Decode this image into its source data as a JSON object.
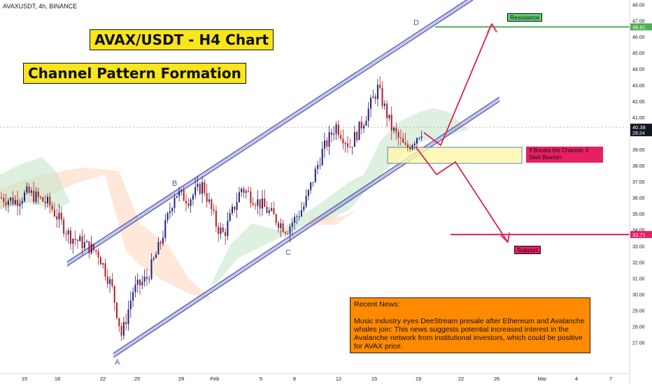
{
  "symbol_header": "AVAXUSDT, 4h, BINANCE",
  "title": "AVAX/USDT - H4 Chart",
  "subtitle": "Channel Pattern Formation",
  "news": {
    "heading": "Recent News:",
    "body": "Music industry eyes DeeStream presale after Ethereum and Avalanche whales join: This news suggests potential increased interest in the Avalanche network from institutional investors, which could be positive for AVAX price."
  },
  "warning": "If  Breaks the Channel, it Start Bearish",
  "resistance_label": "Resistance",
  "support_label": "Support",
  "points": {
    "a": "A",
    "b": "B",
    "c": "C",
    "d": "D"
  },
  "colors": {
    "up": "#1a237e",
    "down": "#b71c1c",
    "resistance": "#4caf50",
    "support": "#e91e63",
    "channel": "#8a8fd6",
    "cloud_bull": "#c8e6c9",
    "cloud_bear": "#ffd7c2"
  },
  "chart_data": {
    "type": "candlestick",
    "ylim": [
      26.4,
      48.0
    ],
    "y_ticks": [
      27,
      28,
      29,
      30,
      31,
      32,
      33,
      34,
      35,
      36,
      37,
      38,
      39,
      40,
      41,
      42,
      43,
      44,
      45,
      46,
      47,
      48
    ],
    "y_tick_labels": [
      "27.00",
      "28.00",
      "29.00",
      "30.00",
      "31.00",
      "32.00",
      "33.00",
      "34.00",
      "35.00",
      "36.00",
      "37.00",
      "38.00",
      "39.00",
      "40.00",
      "41.00",
      "42.00",
      "43.00",
      "44.00",
      "45.00",
      "46.00",
      "47.00",
      "48.00"
    ],
    "x_tick_labels": [
      "15",
      "18",
      "22",
      "25",
      "29",
      "Feb",
      "5",
      "8",
      "12",
      "15",
      "19",
      "22",
      "26",
      "Mar",
      "4",
      "7"
    ],
    "price_tags": [
      {
        "value": 46.61,
        "label": "46.61",
        "color": "#4caf50"
      },
      {
        "value": 40.38,
        "label": "40.38",
        "sublabel": "29:24",
        "color": "#131722"
      },
      {
        "value": 33.71,
        "label": "33.71",
        "color": "#e91e63"
      }
    ],
    "current_price": 40.38,
    "resistance": 46.61,
    "support": 33.71,
    "path_anchors": [
      {
        "label": "A",
        "price": 27.3
      },
      {
        "label": "B",
        "price": 36.3
      },
      {
        "label": "C",
        "price": 33.9
      },
      {
        "label": "D",
        "price": 46.6
      }
    ]
  }
}
